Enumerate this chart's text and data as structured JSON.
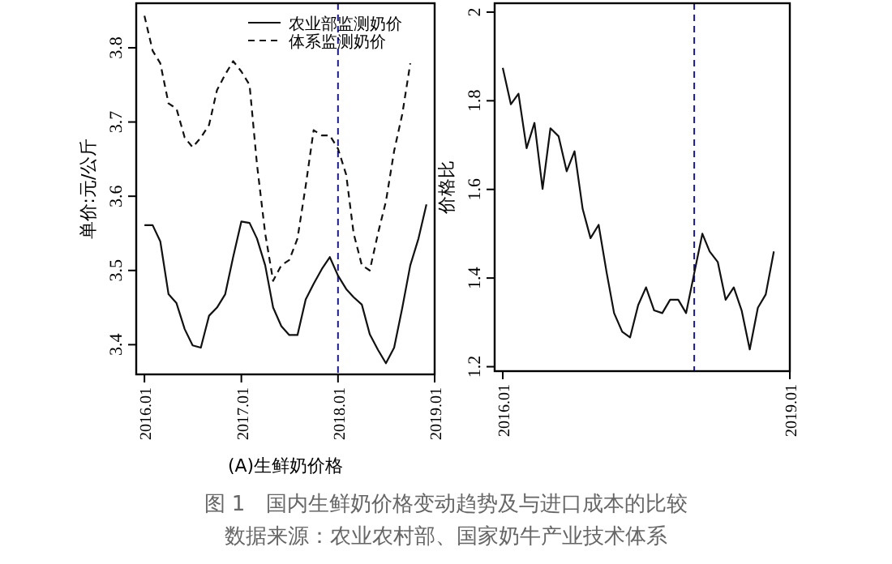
{
  "chart_data": [
    {
      "type": "line",
      "xlabel": "(A)生鲜奶价格",
      "ylabel": "单价:元/公斤",
      "x": [
        "2016-01",
        "2016-02",
        "2016-03",
        "2016-04",
        "2016-05",
        "2016-06",
        "2016-07",
        "2016-08",
        "2016-09",
        "2016-10",
        "2016-11",
        "2016-12",
        "2017-01",
        "2017-02",
        "2017-03",
        "2017-04",
        "2017-05",
        "2017-06",
        "2017-07",
        "2017-08",
        "2017-09",
        "2017-10",
        "2017-11",
        "2017-12",
        "2018-01",
        "2018-02",
        "2018-03",
        "2018-04",
        "2018-05",
        "2018-06",
        "2018-07",
        "2018-08",
        "2018-09",
        "2018-10",
        "2018-11",
        "2018-12"
      ],
      "series": [
        {
          "name": "农业部监测奶价",
          "color": "#111111",
          "line_style": "solid",
          "values": [
            3.561,
            3.561,
            3.539,
            3.468,
            3.456,
            3.421,
            3.399,
            3.396,
            3.439,
            3.45,
            3.468,
            3.518,
            3.566,
            3.564,
            3.543,
            3.507,
            3.45,
            3.425,
            3.413,
            3.413,
            3.461,
            3.482,
            3.502,
            3.518,
            3.493,
            3.475,
            3.464,
            3.454,
            3.414,
            3.393,
            3.375,
            3.396,
            3.45,
            3.507,
            3.543,
            3.589
          ]
        },
        {
          "name": "体系监测奶价",
          "color": "#111111",
          "line_style": "dashed",
          "values": [
            3.843,
            3.796,
            3.779,
            3.725,
            3.718,
            3.679,
            3.666,
            3.679,
            3.696,
            3.743,
            3.764,
            3.782,
            3.768,
            3.75,
            3.643,
            3.55,
            3.486,
            3.507,
            3.514,
            3.543,
            3.614,
            3.689,
            3.682,
            3.682,
            3.664,
            3.629,
            3.55,
            3.507,
            3.5,
            3.55,
            3.593,
            3.661,
            3.711,
            3.779,
            null,
            null
          ]
        }
      ],
      "xlim": [
        "2015-12",
        "2019-01"
      ],
      "xticks": [
        {
          "value": "2016-01",
          "label": "2016.01"
        },
        {
          "value": "2017-01",
          "label": "2017.01"
        },
        {
          "value": "2018-01",
          "label": "2018.01"
        },
        {
          "value": "2019-01",
          "label": "2019.01"
        }
      ],
      "ylim": [
        3.36,
        3.86
      ],
      "yticks": [
        3.4,
        3.5,
        3.6,
        3.7,
        3.8
      ],
      "ref_lines": [
        {
          "axis": "x",
          "value": "2018-01",
          "color": "#1a1a8c",
          "line_style": "dashed"
        }
      ],
      "legend": "top right",
      "grid": false,
      "annotations": [
        "图 1　国内生鲜奶价格变动趋势及与进口成本的比较",
        "数据来源：农业农村部、国家奶牛产业技术体系"
      ]
    },
    {
      "type": "line",
      "ylabel": "价格比",
      "x": [
        "2016-01",
        "2016-02",
        "2016-03",
        "2016-04",
        "2016-05",
        "2016-06",
        "2016-07",
        "2016-08",
        "2016-09",
        "2016-10",
        "2016-11",
        "2016-12",
        "2017-01",
        "2017-02",
        "2017-03",
        "2017-04",
        "2017-05",
        "2017-06",
        "2017-07",
        "2017-08",
        "2017-09",
        "2017-10",
        "2017-11",
        "2017-12",
        "2018-01",
        "2018-02",
        "2018-03",
        "2018-04",
        "2018-05",
        "2018-06",
        "2018-07",
        "2018-08",
        "2018-09",
        "2018-10",
        "2018-11"
      ],
      "series": [
        {
          "color": "#111111",
          "line_style": "solid",
          "values": [
            1.874,
            1.792,
            1.816,
            1.693,
            1.75,
            1.601,
            1.738,
            1.72,
            1.641,
            1.686,
            1.556,
            1.49,
            1.52,
            1.411,
            1.321,
            1.279,
            1.266,
            1.339,
            1.379,
            1.327,
            1.321,
            1.351,
            1.351,
            1.321,
            1.411,
            1.5,
            1.46,
            1.436,
            1.351,
            1.379,
            1.327,
            1.239,
            1.333,
            1.363,
            1.46
          ]
        }
      ],
      "xlim": [
        "2015-12",
        "2019-01"
      ],
      "xticks": [
        {
          "value": "2016-01",
          "label": "2016.01"
        },
        {
          "value": "2019-01",
          "label": "2019.01"
        }
      ],
      "ylim": [
        1.19,
        2.02
      ],
      "yticks": [
        1.2,
        1.4,
        1.6,
        1.8,
        2
      ],
      "ref_lines": [
        {
          "axis": "x",
          "value": "2018-01",
          "color": "#1a1a8c",
          "line_style": "dashed"
        }
      ],
      "grid": false
    }
  ]
}
